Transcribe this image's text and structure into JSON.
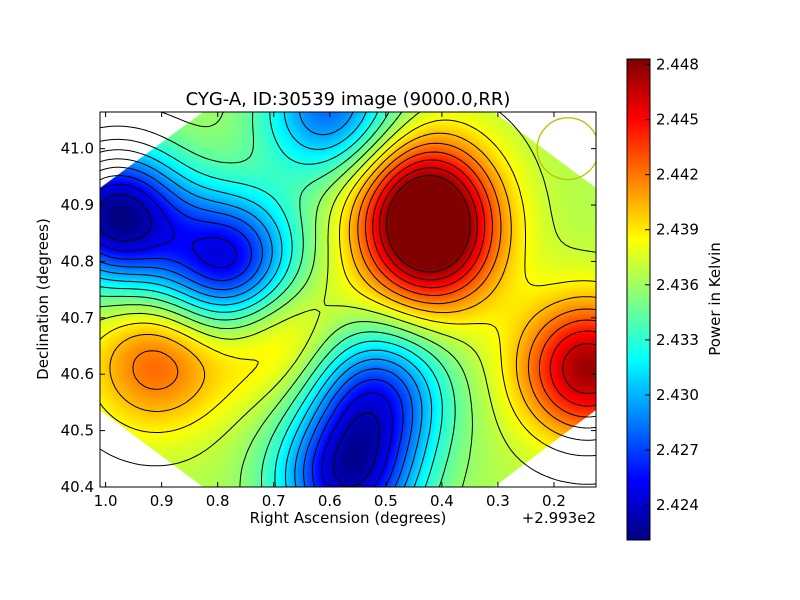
{
  "chart_data": {
    "type": "heatmap",
    "title": "CYG-A, ID:30539 image (9000.0,RR)",
    "xlabel": "Right Ascension (degrees)",
    "ylabel": "Declination (degrees)",
    "x_offset_label": "+2.993e2",
    "x_ticks": [
      "1.0",
      "0.9",
      "0.8",
      "0.7",
      "0.6",
      "0.5",
      "0.4",
      "0.3",
      "0.2"
    ],
    "y_ticks": [
      "40.4",
      "40.5",
      "40.6",
      "40.7",
      "40.8",
      "40.9",
      "41.0"
    ],
    "xlim": [
      1.01,
      0.125
    ],
    "ylim": [
      40.4,
      41.065
    ],
    "colorbar": {
      "label": "Power in Kelvin",
      "range": [
        2.4221,
        2.4483
      ],
      "ticks": [
        "2.424",
        "2.427",
        "2.430",
        "2.433",
        "2.436",
        "2.439",
        "2.442",
        "2.445",
        "2.448"
      ],
      "colormap": "jet"
    },
    "grid": false,
    "features": [
      {
        "kind": "max",
        "x": 0.43,
        "y": 40.91,
        "value": 2.4465
      },
      {
        "kind": "max",
        "x": 0.42,
        "y": 40.82,
        "value": 2.4455
      },
      {
        "kind": "max",
        "x": 0.14,
        "y": 40.61,
        "value": 2.4475
      },
      {
        "kind": "max",
        "x": 0.91,
        "y": 40.62,
        "value": 2.4425
      },
      {
        "kind": "max",
        "x": 0.69,
        "y": 40.67,
        "value": 2.4405
      },
      {
        "kind": "min",
        "x": 0.98,
        "y": 40.88,
        "value": 2.4225
      },
      {
        "kind": "min",
        "x": 0.78,
        "y": 40.8,
        "value": 2.4245
      },
      {
        "kind": "min",
        "x": 0.52,
        "y": 40.56,
        "value": 2.4265
      },
      {
        "kind": "min",
        "x": 0.57,
        "y": 40.41,
        "value": 2.425
      },
      {
        "kind": "min",
        "x": 0.6,
        "y": 41.07,
        "value": 2.428
      }
    ],
    "beam_circle": {
      "x": 0.175,
      "y": 41.0,
      "radius_deg": 0.055,
      "color": "#bfbf00"
    }
  }
}
